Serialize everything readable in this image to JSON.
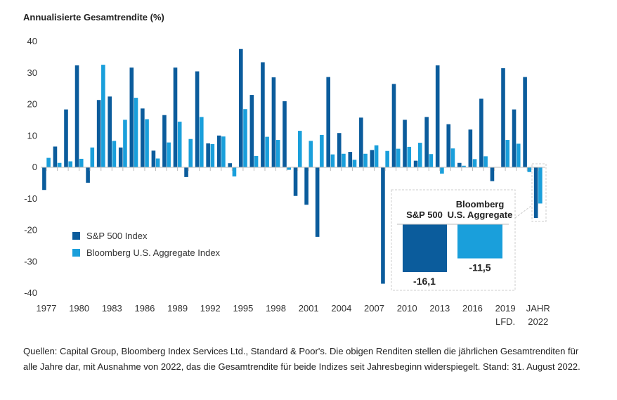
{
  "chart_data": {
    "type": "bar",
    "title": "Annualisierte Gesamtrendite (%)",
    "ylim": [
      -40,
      40
    ],
    "yticks": [
      40,
      30,
      20,
      10,
      0,
      -10,
      -20,
      -30,
      -40
    ],
    "x": [
      1977,
      1978,
      1979,
      1980,
      1981,
      1982,
      1983,
      1984,
      1985,
      1986,
      1987,
      1988,
      1989,
      1990,
      1991,
      1992,
      1993,
      1994,
      1995,
      1996,
      1997,
      1998,
      1999,
      2000,
      2001,
      2002,
      2003,
      2004,
      2005,
      2006,
      2007,
      2008,
      2009,
      2010,
      2011,
      2012,
      2013,
      2014,
      2015,
      2016,
      2017,
      2018,
      2019,
      2020,
      2021,
      2022
    ],
    "xtick_labels": [
      {
        "year": 1977,
        "label": "1977"
      },
      {
        "year": 1980,
        "label": "1980"
      },
      {
        "year": 1983,
        "label": "1983"
      },
      {
        "year": 1986,
        "label": "1986"
      },
      {
        "year": 1989,
        "label": "1989"
      },
      {
        "year": 1992,
        "label": "1992"
      },
      {
        "year": 1995,
        "label": "1995"
      },
      {
        "year": 1998,
        "label": "1998"
      },
      {
        "year": 2001,
        "label": "2001"
      },
      {
        "year": 2004,
        "label": "2004"
      },
      {
        "year": 2007,
        "label": "2007"
      },
      {
        "year": 2010,
        "label": "2010"
      },
      {
        "year": 2013,
        "label": "2013"
      },
      {
        "year": 2016,
        "label": "2016"
      },
      {
        "year": 2019,
        "label": "2019"
      },
      {
        "year": 2022,
        "label": "JAHR",
        "label2": "LFD.",
        "label3": "2022"
      }
    ],
    "series": [
      {
        "name": "S&P 500 Index",
        "color": "#0b5c9c",
        "values": [
          -7.2,
          6.6,
          18.4,
          32.4,
          -4.9,
          21.4,
          22.5,
          6.3,
          31.7,
          18.7,
          5.3,
          16.6,
          31.7,
          -3.1,
          30.5,
          7.6,
          10.1,
          1.3,
          37.6,
          23.0,
          33.4,
          28.6,
          21.0,
          -9.1,
          -11.9,
          -22.1,
          28.7,
          10.9,
          4.9,
          15.8,
          5.5,
          -37.0,
          26.5,
          15.1,
          2.1,
          16.0,
          32.4,
          13.7,
          1.4,
          12.0,
          21.8,
          -4.4,
          31.5,
          18.4,
          28.7,
          -16.1
        ]
      },
      {
        "name": "Bloomberg U.S. Aggregate Index",
        "color": "#1a9fdb",
        "values": [
          3.0,
          1.4,
          1.9,
          2.7,
          6.3,
          32.6,
          8.4,
          15.1,
          22.1,
          15.3,
          2.8,
          7.9,
          14.5,
          9.0,
          16.0,
          7.4,
          9.8,
          -2.9,
          18.5,
          3.6,
          9.7,
          8.7,
          -0.8,
          11.6,
          8.4,
          10.3,
          4.1,
          4.3,
          2.4,
          4.3,
          7.0,
          5.2,
          5.9,
          6.5,
          7.8,
          4.2,
          -2.0,
          6.0,
          0.5,
          2.6,
          3.5,
          0.0,
          8.7,
          7.5,
          -1.5,
          -11.5
        ]
      }
    ],
    "legend_position": "lower-left",
    "inset": {
      "sp_label": "S&P 500",
      "agg_label_1": "Bloomberg",
      "agg_label_2": "U.S. Aggregate",
      "sp_value": -16.1,
      "agg_value": -11.5,
      "sp_value_label": "-16,1",
      "agg_value_label": "-11,5"
    }
  },
  "footnote": "Quellen: Capital Group, Bloomberg Index Services Ltd., Standard & Poor's. Die obigen Renditen stellen die jährlichen Gesamtrenditen für alle Jahre dar, mit Ausnahme von 2022, das die Gesamtrendite für beide Indizes seit Jahresbeginn widerspiegelt. Stand: 31. August 2022."
}
